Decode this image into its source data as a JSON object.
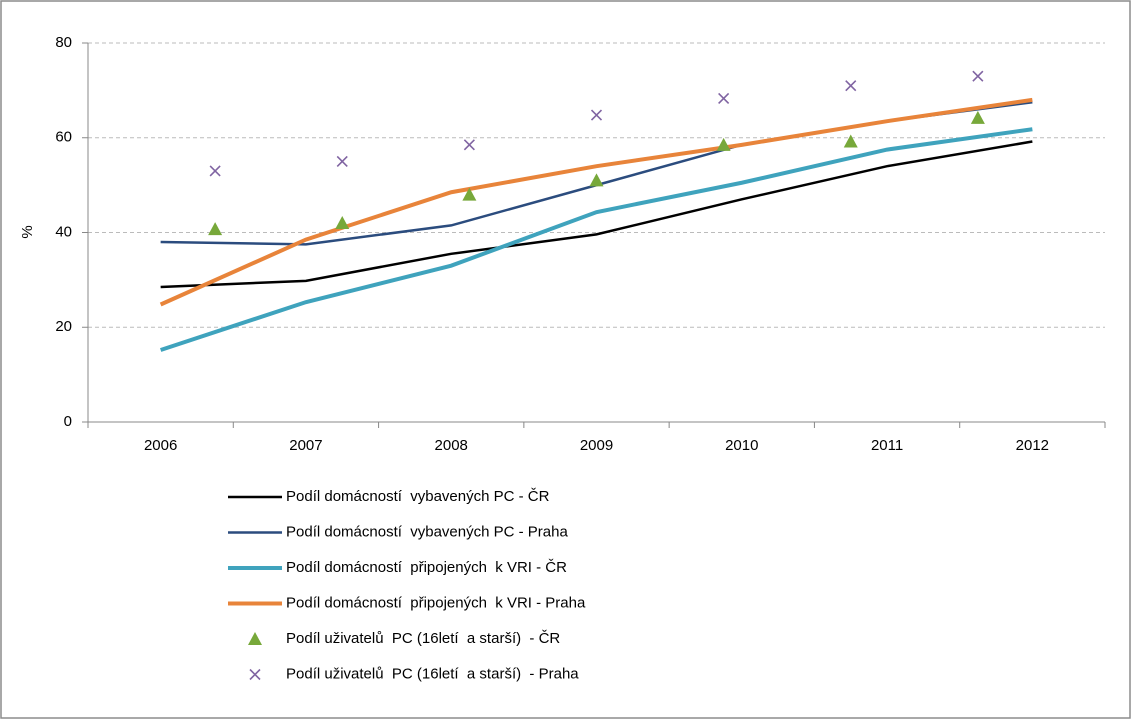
{
  "chart_data": {
    "type": "line",
    "categories": [
      "2006",
      "2007",
      "2008",
      "2009",
      "2010",
      "2011",
      "2012"
    ],
    "ylabel": "%",
    "ylim": [
      0,
      80
    ],
    "yticks": [
      0,
      20,
      40,
      60,
      80
    ],
    "grid": true,
    "series": [
      {
        "name": "Podíl domácností  vybavených PC - ČR",
        "color": "#000000",
        "style": "line",
        "values": [
          28.5,
          29.8,
          35.5,
          39.6,
          47,
          54,
          59.2
        ]
      },
      {
        "name": "Podíl domácností  vybavených PC - Praha",
        "color": "#2b4c7e",
        "style": "line",
        "values": [
          38,
          37.5,
          41.5,
          50,
          58.5,
          63.5,
          67.5
        ]
      },
      {
        "name": "Podíl domácností  připojených  k VRI - ČR",
        "color": "#3fa3bd",
        "style": "line",
        "values": [
          15.2,
          25.3,
          33,
          44.3,
          50.5,
          57.5,
          61.8
        ]
      },
      {
        "name": "Podíl domácností  připojených  k VRI - Praha",
        "color": "#e8843a",
        "style": "line",
        "values": [
          24.8,
          38.5,
          48.5,
          54,
          58.5,
          63.5,
          68
        ]
      },
      {
        "name": "Podíl uživatelů  PC (16letí  a starší)  - ČR",
        "color": "#77a83a",
        "style": "triangle",
        "values": [
          40.7,
          42,
          48,
          51,
          58.5,
          59.2,
          64.2
        ]
      },
      {
        "name": "Podíl uživatelů  PC (16letí  a starší)  - Praha",
        "color": "#8064a2",
        "style": "cross",
        "values": [
          53,
          55,
          58.5,
          64.8,
          68.3,
          71,
          73
        ]
      }
    ]
  }
}
